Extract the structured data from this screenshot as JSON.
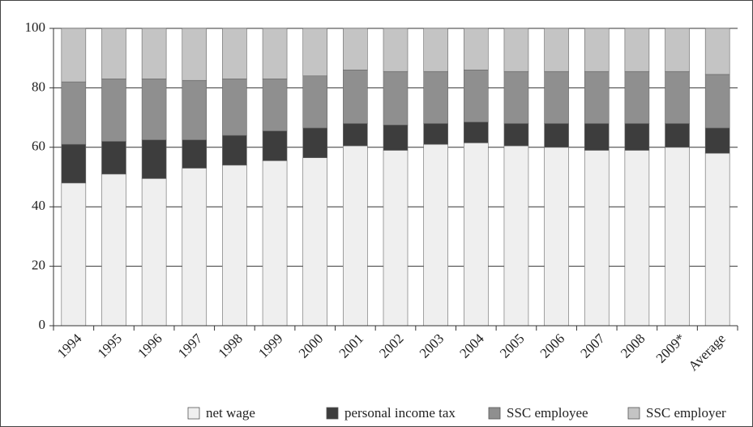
{
  "chart_data": {
    "type": "stacked_bar",
    "categories": [
      "1994",
      "1995",
      "1996",
      "1997",
      "1998",
      "1999",
      "2000",
      "2001",
      "2002",
      "2003",
      "2004",
      "2005",
      "2006",
      "2007",
      "2008",
      "2009*",
      "Average"
    ],
    "series": [
      {
        "name": "net wage",
        "color": "#efefef",
        "values": [
          48,
          51,
          49.5,
          53,
          54,
          55.5,
          56.5,
          60.5,
          59,
          61,
          61.5,
          60.5,
          60,
          59,
          59,
          60,
          58
        ]
      },
      {
        "name": "personal income tax",
        "color": "#3d3d3d",
        "values": [
          13,
          11,
          13,
          9.5,
          10,
          10,
          10,
          7.5,
          8.5,
          7,
          7,
          7.5,
          8,
          9,
          9,
          8,
          8.5
        ]
      },
      {
        "name": "SSC employee",
        "color": "#8f8f8f",
        "values": [
          21,
          21,
          20.5,
          20,
          19,
          17.5,
          17.5,
          18,
          18,
          17.5,
          17.5,
          17.5,
          17.5,
          17.5,
          17.5,
          17.5,
          18
        ]
      },
      {
        "name": "SSC employer",
        "color": "#c4c4c4",
        "values": [
          18,
          17,
          17,
          17.5,
          17,
          17,
          16,
          14,
          14.5,
          14.5,
          14,
          14.5,
          14.5,
          14.5,
          14.5,
          14.5,
          15.5
        ]
      }
    ],
    "ylim": [
      0,
      100
    ],
    "yticks": [
      0,
      20,
      40,
      60,
      80,
      100
    ],
    "grid": true,
    "legend": "bottom"
  }
}
